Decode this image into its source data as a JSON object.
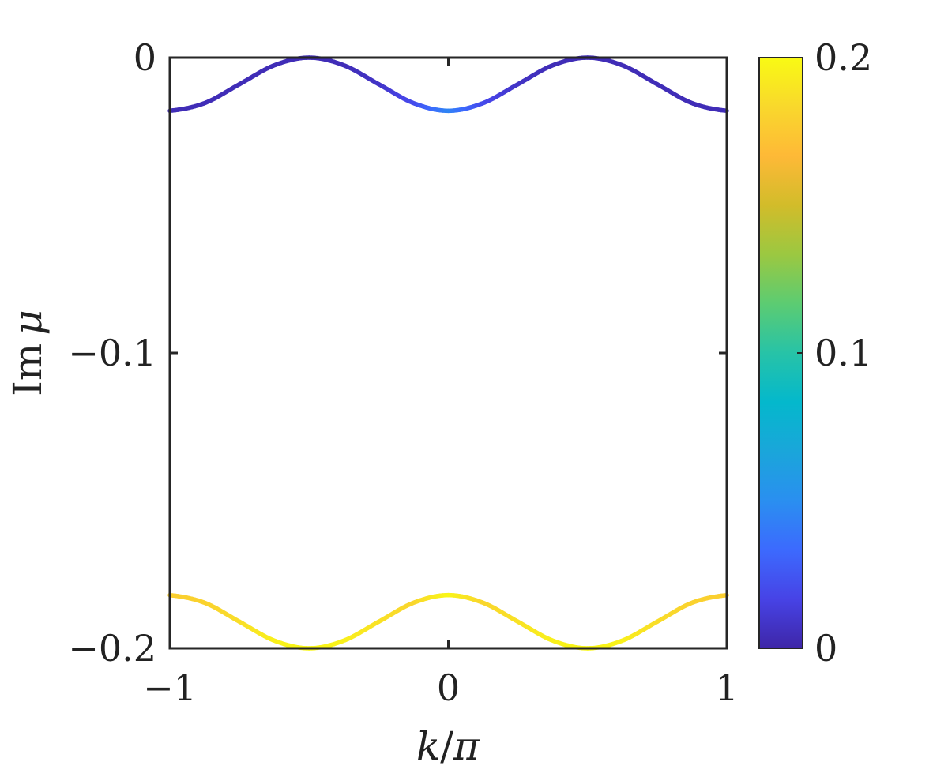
{
  "chart_data": {
    "type": "line",
    "title": "",
    "xlabel": {
      "main": "k",
      "sep": "/",
      "sub": "π"
    },
    "ylabel": {
      "main": "Im",
      "sym": "μ"
    },
    "xlim": [
      -1,
      1
    ],
    "ylim": [
      -0.2,
      0
    ],
    "x_ticks": [
      {
        "value": -1,
        "label": "−1"
      },
      {
        "value": 0,
        "label": "0"
      },
      {
        "value": 1,
        "label": "1"
      }
    ],
    "y_ticks": [
      {
        "value": 0,
        "label": "0"
      },
      {
        "value": -0.1,
        "label": "−0.1"
      },
      {
        "value": -0.2,
        "label": "−0.2"
      }
    ],
    "grid": false,
    "colormap": "parula",
    "colorbar": {
      "range": [
        0,
        0.2
      ],
      "ticks": [
        {
          "value": 0.2,
          "label": "0.2"
        },
        {
          "value": 0.1,
          "label": "0.1"
        },
        {
          "value": 0,
          "label": "0"
        }
      ],
      "stops": [
        "#3e26a8",
        "#4743e6",
        "#3c6afe",
        "#2a8ff0",
        "#1aa6da",
        "#04b8cc",
        "#27c3a7",
        "#5ccc72",
        "#9bc841",
        "#d2bc2a",
        "#feb937",
        "#f9d82c",
        "#f9fa14"
      ]
    },
    "series": [
      {
        "x": [
          -1,
          -0.875,
          -0.75,
          -0.625,
          -0.5,
          -0.375,
          -0.25,
          -0.125,
          0,
          0.125,
          0.25,
          0.375,
          0.5,
          0.625,
          0.75,
          0.875,
          1
        ],
        "y": [
          -0.018,
          -0.0154,
          -0.009,
          -0.0026,
          0,
          -0.0026,
          -0.009,
          -0.0154,
          -0.018,
          -0.0154,
          -0.009,
          -0.0026,
          0,
          -0.0026,
          -0.009,
          -0.0154,
          -0.018
        ],
        "color_value": [
          0.004,
          0.004,
          0.004,
          0.004,
          0.004,
          0.004,
          0.008,
          0.02,
          0.045,
          0.02,
          0.008,
          0.004,
          0.004,
          0.004,
          0.004,
          0.004,
          0.004
        ]
      },
      {
        "x": [
          -1,
          -0.875,
          -0.75,
          -0.625,
          -0.5,
          -0.375,
          -0.25,
          -0.125,
          0,
          0.125,
          0.25,
          0.375,
          0.5,
          0.625,
          0.75,
          0.875,
          1
        ],
        "y": [
          -0.182,
          -0.1846,
          -0.191,
          -0.1974,
          -0.2,
          -0.1974,
          -0.191,
          -0.1846,
          -0.182,
          -0.1846,
          -0.191,
          -0.1974,
          -0.2,
          -0.1974,
          -0.191,
          -0.1846,
          -0.182
        ],
        "color_value": [
          0.178,
          0.18,
          0.186,
          0.195,
          0.199,
          0.195,
          0.188,
          0.182,
          0.198,
          0.182,
          0.188,
          0.195,
          0.199,
          0.195,
          0.186,
          0.18,
          0.178
        ]
      }
    ]
  }
}
